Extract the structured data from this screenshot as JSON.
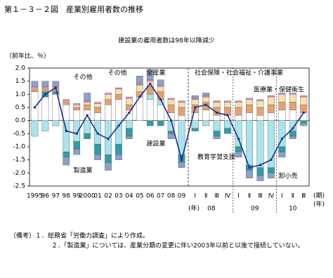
{
  "chart_data": {
    "type": "bar",
    "title": "第１－３－２図　産業別雇用者数の推移",
    "subtitle": "建設業の雇用者数は98年以降減少",
    "y_label": "（前年比、％）",
    "categories": [
      "1995",
      "96",
      "97",
      "98",
      "99",
      "2000",
      "01",
      "02",
      "03",
      "04",
      "05",
      "06",
      "07",
      "08",
      "09",
      "Ⅰ",
      "Ⅱ",
      "Ⅲ",
      "Ⅳ",
      "Ⅰ",
      "Ⅱ",
      "Ⅲ",
      "Ⅳ",
      "Ⅰ",
      "Ⅱ",
      "Ⅲ"
    ],
    "year_groups": [
      "08",
      "09",
      "10"
    ],
    "x_unit_period": "(期)",
    "x_unit_year": "(年)",
    "ylim": [
      -2.5,
      2.0
    ],
    "yticks": [
      {
        "value": 2.0,
        "label": "2.0"
      },
      {
        "value": 1.5,
        "label": "1.5"
      },
      {
        "value": 1.0,
        "label": "1.0"
      },
      {
        "value": 0.5,
        "label": "0.5"
      },
      {
        "value": 0.0,
        "label": "0.0"
      },
      {
        "value": -0.5,
        "label": "-0.5"
      },
      {
        "value": -1.0,
        "label": "-1.0"
      },
      {
        "value": -1.5,
        "label": "-1.5"
      },
      {
        "value": -2.0,
        "label": "-2.0"
      },
      {
        "value": -2.5,
        "label": "-2.5"
      }
    ],
    "series": [
      {
        "name": "その他",
        "color": "#ffffff",
        "values": [
          1.1,
          0.9,
          1.0,
          0.6,
          0.4,
          0.4,
          0.3,
          0.6,
          0.8,
          0.4,
          0.9,
          0.8,
          0.6,
          0.3,
          0.2,
          0.3,
          0.4,
          0.2,
          0.2,
          0.2,
          0.3,
          0.2,
          0.3,
          0.4,
          0.4,
          0.3
        ]
      },
      {
        "name": "製造業",
        "color": "#a8e4ec",
        "values": [
          -0.6,
          -0.4,
          -0.2,
          -1.2,
          -0.8,
          -0.5,
          -0.9,
          -1.3,
          -0.9,
          -0.3,
          0.0,
          0.2,
          0.2,
          -0.4,
          -1.3,
          -0.3,
          -0.2,
          -0.4,
          -0.3,
          -1.0,
          -1.7,
          -1.8,
          -1.8,
          -1.0,
          -0.4,
          0.0
        ]
      },
      {
        "name": "建設業",
        "color": "#2e9ea6",
        "values": [
          0.0,
          0.2,
          0.1,
          -0.2,
          -0.3,
          -0.2,
          -0.4,
          -0.3,
          -0.4,
          -0.3,
          0.0,
          -0.2,
          -0.2,
          -0.1,
          -0.3,
          -0.1,
          0.0,
          -0.2,
          -0.2,
          -0.2,
          -0.2,
          -0.3,
          -0.2,
          -0.2,
          -0.2,
          -0.1
        ]
      },
      {
        "name": "医療業・保健衛生",
        "color": "#e8a070",
        "values": [
          0.1,
          0.1,
          0.1,
          0.1,
          0.1,
          0.2,
          0.2,
          0.2,
          0.2,
          0.2,
          0.2,
          0.3,
          0.3,
          0.3,
          0.3,
          0.3,
          0.3,
          0.3,
          0.3,
          0.3,
          0.3,
          0.3,
          0.3,
          0.3,
          0.3,
          0.3
        ]
      },
      {
        "name": "社会保険・社会福祉・介護事業",
        "color": "#f3e2b0",
        "values": [
          0.05,
          0.05,
          0.05,
          0.05,
          0.1,
          0.1,
          0.15,
          0.2,
          0.2,
          0.25,
          0.25,
          0.2,
          0.2,
          0.2,
          0.2,
          0.2,
          0.2,
          0.2,
          0.2,
          0.2,
          0.2,
          0.25,
          0.3,
          0.3,
          0.3,
          0.3
        ]
      },
      {
        "name": "教育学習支援",
        "color": "#f08ad0",
        "values": [
          0.05,
          0.05,
          0.05,
          0.05,
          0.05,
          0.05,
          0.05,
          0.05,
          0.05,
          0.05,
          0.05,
          0.05,
          0.05,
          0.05,
          0.05,
          0.05,
          0.05,
          0.05,
          0.05,
          0.05,
          0.05,
          0.05,
          0.05,
          0.05,
          0.05,
          0.05
        ]
      },
      {
        "name": "卸小売",
        "color": "#8ca0c8",
        "values": [
          0.2,
          0.2,
          0.2,
          -0.3,
          -0.2,
          0.3,
          -0.2,
          -0.3,
          -0.2,
          -0.1,
          0.3,
          0.4,
          0.2,
          -0.2,
          -0.2,
          0.1,
          0.1,
          -0.1,
          0.0,
          -0.2,
          -0.3,
          -0.2,
          -0.2,
          -0.2,
          -0.1,
          -0.1
        ]
      },
      {
        "name": "全産業",
        "color": "#1a2f8c",
        "type": "line",
        "values": [
          0.5,
          1.0,
          1.25,
          -0.4,
          -0.5,
          0.2,
          -0.5,
          -0.7,
          -0.2,
          0.3,
          0.9,
          1.4,
          0.8,
          0.0,
          -1.5,
          0.5,
          0.6,
          0.3,
          0.2,
          -0.7,
          -1.8,
          -1.7,
          -1.5,
          -0.7,
          -0.3,
          0.3
        ]
      }
    ],
    "notes": [
      "（備考）１．総務省「労働力調査」により作成。",
      "２．「製造業」については、産業分類の変更に伴い2003年以前と以後で接続していない。"
    ]
  }
}
